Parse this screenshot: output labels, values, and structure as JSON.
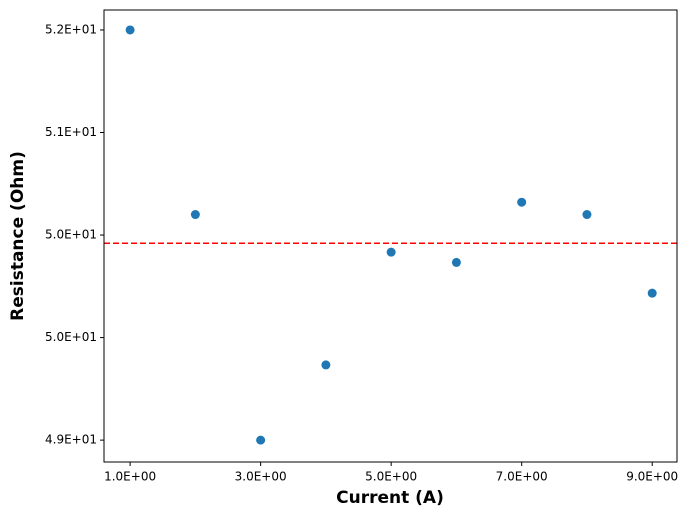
{
  "chart_data": {
    "type": "scatter",
    "x_label": "Current (A)",
    "y_label": "Resistance (Ohm)",
    "x": [
      1,
      2,
      3,
      4,
      5,
      6,
      7,
      8,
      9
    ],
    "values": [
      52.0,
      50.65,
      49.0,
      49.55,
      50.375,
      50.3,
      50.74,
      50.65,
      50.075
    ],
    "color": "#1f77b4",
    "xlim": [
      0.6,
      9.38
    ],
    "ylim": [
      48.84,
      52.146
    ],
    "xticks": [
      {
        "value": 1,
        "label": "1.0E+00"
      },
      {
        "value": 3,
        "label": "3.0E+00"
      },
      {
        "value": 5,
        "label": "5.0E+00"
      },
      {
        "value": 7,
        "label": "7.0E+00"
      },
      {
        "value": 9,
        "label": "9.0E+00"
      }
    ],
    "yticks": [
      {
        "value": 49,
        "label": "4.9E+01"
      },
      {
        "value": 49.75,
        "label": "5.0E+01"
      },
      {
        "value": 50.5,
        "label": "5.0E+01"
      },
      {
        "value": 51.25,
        "label": "5.1E+01"
      },
      {
        "value": 52,
        "label": "5.2E+01"
      }
    ],
    "reference_line": {
      "value": 50.44,
      "color": "#ff0000"
    }
  }
}
